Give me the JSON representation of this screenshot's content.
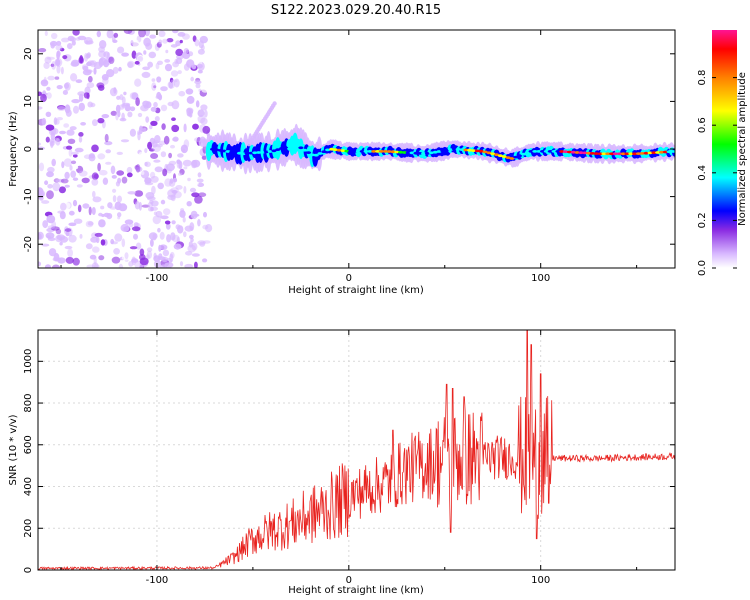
{
  "title": "S122.2023.029.20.40.R15",
  "colorbar": {
    "label": "Normalized spectral amplitude",
    "ticks": [
      0.0,
      0.2,
      0.4,
      0.6,
      0.8
    ],
    "range": [
      0,
      1
    ],
    "colormap": [
      "#ffffff",
      "#d8b8ff",
      "#8a2be2",
      "#0000ff",
      "#00ffff",
      "#00ff00",
      "#ffff00",
      "#ff8000",
      "#ff0000",
      "#ff1493"
    ]
  },
  "chart_data": [
    {
      "type": "heatmap",
      "xlabel": "Height of straight line (km)",
      "ylabel": "Frequency (Hz)",
      "xlim": [
        -162,
        170
      ],
      "ylim": [
        -25,
        25
      ],
      "xticks": [
        -100,
        0,
        100
      ],
      "yticks": [
        -20,
        -10,
        0,
        10,
        20
      ],
      "noise_region_x": [
        -162,
        -73
      ],
      "signal_band": {
        "center_frequency_hz": [
          [
            -72,
            0.0
          ],
          [
            -55,
            -1.0
          ],
          [
            -40,
            -0.5
          ],
          [
            -28,
            1.0
          ],
          [
            -18,
            -1.5
          ],
          [
            -10,
            0.0
          ],
          [
            0,
            -0.5
          ],
          [
            20,
            -0.5
          ],
          [
            40,
            -1.0
          ],
          [
            55,
            0.0
          ],
          [
            70,
            -0.5
          ],
          [
            85,
            -2.0
          ],
          [
            95,
            -0.5
          ],
          [
            110,
            -0.5
          ],
          [
            130,
            -1.0
          ],
          [
            150,
            -1.0
          ],
          [
            170,
            -0.5
          ]
        ],
        "peak_amplitude_segments": [
          [
            -10,
            0,
            0.75
          ],
          [
            12,
            30,
            0.8
          ],
          [
            60,
            85,
            0.85
          ],
          [
            110,
            165,
            0.95
          ]
        ]
      }
    },
    {
      "type": "line",
      "xlabel": "Height of straight line (km)",
      "ylabel": "SNR (10 * v/v)",
      "xlim": [
        -162,
        170
      ],
      "ylim": [
        0,
        1150
      ],
      "xticks": [
        -100,
        0,
        100
      ],
      "yticks": [
        0,
        200,
        400,
        600,
        800,
        1000
      ],
      "color": "#e8231f",
      "series": [
        {
          "envelope": [
            [
              -162,
              8
            ],
            [
              -70,
              10
            ],
            [
              -60,
              60
            ],
            [
              -50,
              150
            ],
            [
              -40,
              190
            ],
            [
              -30,
              220
            ],
            [
              -20,
              260
            ],
            [
              -10,
              300
            ],
            [
              0,
              350
            ],
            [
              10,
              390
            ],
            [
              20,
              420
            ],
            [
              30,
              480
            ],
            [
              40,
              510
            ],
            [
              50,
              530
            ],
            [
              60,
              540
            ],
            [
              70,
              540
            ],
            [
              80,
              540
            ],
            [
              90,
              540
            ],
            [
              100,
              540
            ],
            [
              110,
              535
            ],
            [
              130,
              535
            ],
            [
              150,
              540
            ],
            [
              170,
              545
            ]
          ],
          "spikes": [
            [
              23,
              670
            ],
            [
              51,
              890
            ],
            [
              54,
              870
            ],
            [
              60,
              830
            ],
            [
              93,
              1150
            ],
            [
              95,
              1080
            ],
            [
              100,
              940
            ],
            [
              98,
              150
            ],
            [
              53,
              180
            ],
            [
              104,
              320
            ]
          ]
        }
      ]
    }
  ]
}
